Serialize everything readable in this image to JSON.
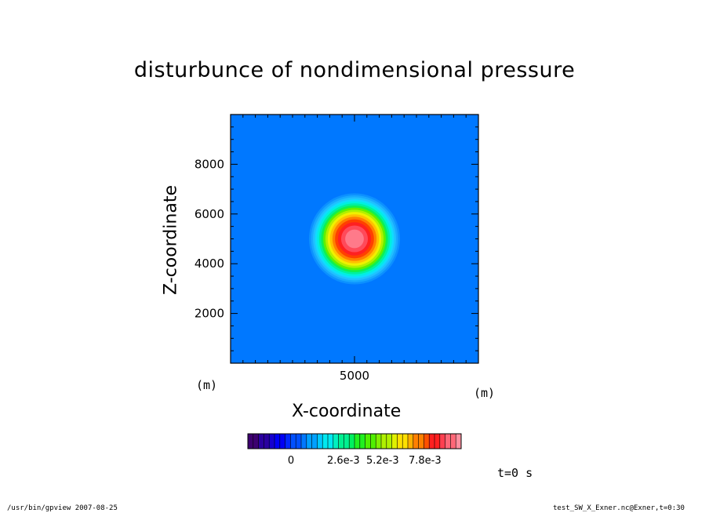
{
  "chart_data": {
    "type": "heatmap",
    "title": "disturbunce of nondimensional pressure",
    "xlabel": "X-coordinate",
    "ylabel": "Z-coordinate",
    "x_unit": "(m)",
    "y_unit": "(m)",
    "xlim": [
      0,
      10000
    ],
    "ylim": [
      0,
      10000
    ],
    "x_ticks": [
      5000
    ],
    "x_tick_labels": [
      "5000"
    ],
    "y_ticks": [
      2000,
      4000,
      6000,
      8000
    ],
    "y_tick_labels": [
      "2000",
      "4000",
      "6000",
      "8000"
    ],
    "field": {
      "shape": "gaussian",
      "center_x": 5000,
      "center_z": 5000,
      "max_value": 0.0105,
      "background_value": 0
    },
    "colorbar": {
      "tick_labels": [
        "0",
        "2.6e-3",
        "5.2e-3",
        "7.8e-3"
      ],
      "num_levels": 40,
      "colors": [
        "#3d0070",
        "#2a00a0",
        "#1500d0",
        "#0000f5",
        "#0028ff",
        "#0050ff",
        "#0078ff",
        "#00a0ff",
        "#00c8ff",
        "#00e8f0",
        "#00f0c0",
        "#00f090",
        "#00f060",
        "#20f020",
        "#50f000",
        "#80f000",
        "#b0f000",
        "#e0f000",
        "#ffe000",
        "#ffb000",
        "#ff8000",
        "#ff5000",
        "#ff2020",
        "#ff4050",
        "#ff6878",
        "#ff90a0"
      ]
    },
    "grid": false
  },
  "annotations": {
    "time": "t=0 s",
    "footer_left": "/usr/bin/gpview   2007-08-25",
    "footer_right": "test_SW_X_Exner.nc@Exner,t=0:30"
  }
}
